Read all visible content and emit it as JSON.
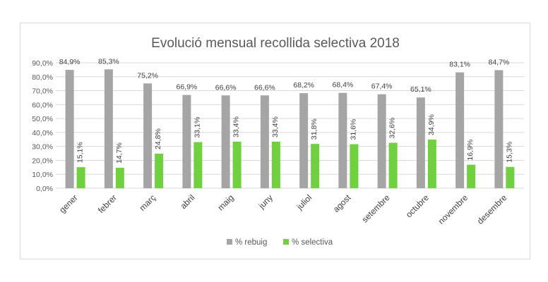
{
  "chart_data": {
    "type": "bar",
    "title": "Evolució mensual recollida selectiva 2018",
    "categories": [
      "gener",
      "febrer",
      "març",
      "abril",
      "maig",
      "juny",
      "juliol",
      "agost",
      "setembre",
      "octubre",
      "novembre",
      "desembre"
    ],
    "series": [
      {
        "name": "% rebuig",
        "color": "#a5a5a5",
        "values": [
          84.9,
          85.3,
          75.2,
          66.9,
          66.6,
          66.6,
          68.2,
          68.4,
          67.4,
          65.1,
          83.1,
          84.7
        ],
        "labels": [
          "84,9%",
          "85,3%",
          "75,2%",
          "66,9%",
          "66,6%",
          "66,6%",
          "68,2%",
          "68,4%",
          "67,4%",
          "65,1%",
          "83,1%",
          "84,7%"
        ]
      },
      {
        "name": "% selectiva",
        "color": "#70d040",
        "values": [
          15.1,
          14.7,
          24.8,
          33.1,
          33.4,
          33.4,
          31.8,
          31.6,
          32.6,
          34.9,
          16.9,
          15.3
        ],
        "labels": [
          "15,1%",
          "14,7%",
          "24,8%",
          "33,1%",
          "33,4%",
          "33,4%",
          "31,8%",
          "31,6%",
          "32,6%",
          "34,9%",
          "16,9%",
          "15,3%"
        ]
      }
    ],
    "ylim": [
      0,
      90
    ],
    "yticks": [
      0,
      10,
      20,
      30,
      40,
      50,
      60,
      70,
      80,
      90
    ],
    "ytick_labels": [
      "0,0%",
      "10,0%",
      "20,0%",
      "30,0%",
      "40,0%",
      "50,0%",
      "60,0%",
      "70,0%",
      "80,0%",
      "90,0%"
    ],
    "xlabel": "",
    "ylabel": "",
    "grid": true,
    "legend": "bottom"
  }
}
